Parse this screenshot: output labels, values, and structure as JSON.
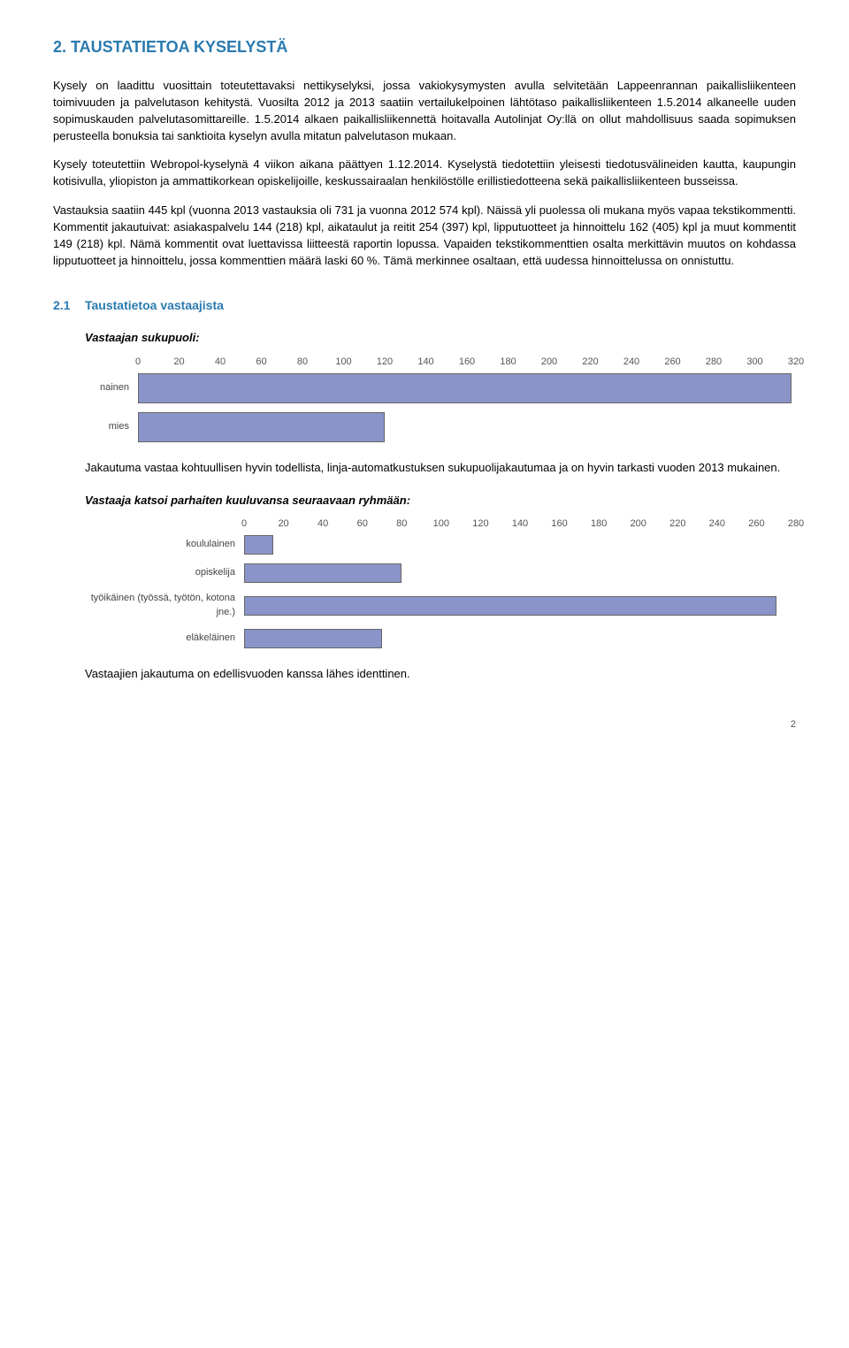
{
  "heading1": "2.  TAUSTATIETOA KYSELYSTÄ",
  "paragraphs": {
    "p1": "Kysely on laadittu vuosittain toteutettavaksi nettikyselyksi, jossa vakiokysymysten avulla selvitetään Lappeenrannan paikallisliikenteen toimivuuden ja palvelutason kehitystä. Vuosilta 2012 ja 2013 saatiin vertailukelpoinen lähtötaso paikallisliikenteen 1.5.2014 alkaneelle uuden sopimuskauden palvelutasomittareille. 1.5.2014 alkaen paikallisliikennettä hoitavalla Autolinjat Oy:llä on ollut mahdollisuus saada sopimuksen perusteella bonuksia tai sanktioita kyselyn avulla mitatun palvelutason mukaan.",
    "p2": "Kysely toteutettiin Webropol-kyselynä 4 viikon aikana päättyen 1.12.2014. Kyselystä tiedotettiin yleisesti tiedotusvälineiden kautta, kaupungin kotisivulla, yliopiston ja ammattikorkean opiskelijoille, keskussairaalan henkilöstölle erillistiedotteena sekä paikallisliikenteen busseissa.",
    "p3": "Vastauksia saatiin 445 kpl (vuonna 2013 vastauksia oli 731 ja vuonna 2012 574 kpl). Näissä yli puolessa oli mukana myös vapaa tekstikommentti. Kommentit jakautuivat: asiakaspalvelu 144 (218) kpl, aikataulut ja reitit 254 (397) kpl, lipputuotteet ja hinnoittelu 162 (405) kpl ja muut kommentit 149 (218) kpl. Nämä kommentit ovat luettavissa liitteestä raportin lopussa. Vapaiden tekstikommenttien osalta merkittävin muutos on kohdassa lipputuotteet ja hinnoittelu, jossa kommenttien määrä laski 60 %. Tämä merkinnee osaltaan, että uudessa hinnoittelussa on onnistuttu.",
    "p4": "Jakautuma vastaa kohtuullisen hyvin todellista, linja-automatkustuksen sukupuolijakautumaa ja on hyvin tarkasti vuoden 2013 mukainen.",
    "p5": "Vastaajien jakautuma on edellisvuoden kanssa lähes identtinen."
  },
  "heading2": {
    "num": "2.1",
    "text": "Taustatietoa vastaajista"
  },
  "sub1": "Vastaajan sukupuoli:",
  "sub2": "Vastaaja katsoi parhaiten kuuluvansa seuraavaan ryhmään:",
  "chart1": {
    "type": "bar",
    "label_width": 60,
    "bar_color": "#8a94c8",
    "bar_border": "#666666",
    "xmax": 320,
    "tick_step": 20,
    "ticks": [
      0,
      20,
      40,
      60,
      80,
      100,
      120,
      140,
      160,
      180,
      200,
      220,
      240,
      260,
      280,
      300,
      320
    ],
    "categories": [
      "nainen",
      "mies"
    ],
    "values": [
      318,
      120
    ]
  },
  "chart2": {
    "type": "bar",
    "label_width": 180,
    "bar_color": "#8a94c8",
    "bar_border": "#666666",
    "xmax": 280,
    "tick_step": 20,
    "ticks": [
      0,
      20,
      40,
      60,
      80,
      100,
      120,
      140,
      160,
      180,
      200,
      220,
      240,
      260,
      280
    ],
    "categories": [
      "koululainen",
      "opiskelija",
      "työikäinen (työssä, työtön, kotona jne.)",
      "eläkeläinen"
    ],
    "values": [
      15,
      80,
      270,
      70
    ]
  },
  "page_number": "2"
}
